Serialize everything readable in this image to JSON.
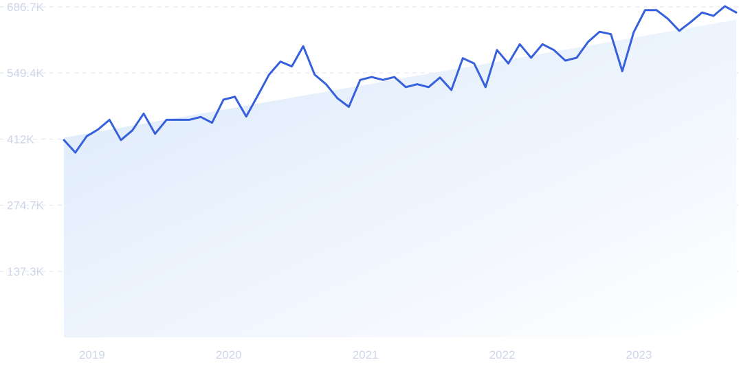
{
  "chart_data": {
    "type": "area",
    "title": "",
    "xlabel": "",
    "ylabel": "",
    "ylim": [
      0,
      686700
    ],
    "y_ticks": [
      {
        "value": 137300,
        "label": "137.3K"
      },
      {
        "value": 274700,
        "label": "274.7K"
      },
      {
        "value": 412000,
        "label": "412K"
      },
      {
        "value": 549400,
        "label": "549.4K"
      },
      {
        "value": 686700,
        "label": "686.7K"
      }
    ],
    "x_ticks": [
      {
        "value": "2019",
        "label": "2019"
      },
      {
        "value": "2020",
        "label": "2020"
      },
      {
        "value": "2021",
        "label": "2021"
      },
      {
        "value": "2022",
        "label": "2022"
      },
      {
        "value": "2023",
        "label": "2023"
      }
    ],
    "grid": true,
    "colors": {
      "line": "#3660dc",
      "area_top": "#dbe9fb",
      "area_bottom": "#ffffff",
      "grid": "#dde3f0",
      "tick_label": "#cfd6ea"
    },
    "series": [
      {
        "name": "",
        "x": [
          "2018-11",
          "2018-12",
          "2019-01",
          "2019-02",
          "2019-03",
          "2019-04",
          "2019-05",
          "2019-06",
          "2019-07",
          "2019-08",
          "2019-09",
          "2019-10",
          "2019-11",
          "2019-12",
          "2020-01",
          "2020-02",
          "2020-03",
          "2020-04",
          "2020-05",
          "2020-06",
          "2020-07",
          "2020-08",
          "2020-09",
          "2020-10",
          "2020-11",
          "2020-12",
          "2021-01",
          "2021-02",
          "2021-03",
          "2021-04",
          "2021-05",
          "2021-06",
          "2021-07",
          "2021-08",
          "2021-09",
          "2021-10",
          "2021-11",
          "2021-12",
          "2022-01",
          "2022-02",
          "2022-03",
          "2022-04",
          "2022-05",
          "2022-06",
          "2022-07",
          "2022-08",
          "2022-09",
          "2022-10",
          "2022-11",
          "2022-12",
          "2023-01",
          "2023-02",
          "2023-03",
          "2023-04",
          "2023-05",
          "2023-06",
          "2023-07",
          "2023-08",
          "2023-09",
          "2023-10"
        ],
        "values": [
          410000,
          384000,
          418000,
          432000,
          452000,
          410000,
          430000,
          465000,
          423000,
          452000,
          452000,
          452000,
          458000,
          446000,
          494000,
          500000,
          459000,
          502000,
          546000,
          573000,
          563000,
          605000,
          546000,
          526000,
          497000,
          479000,
          535000,
          541000,
          535000,
          541000,
          520000,
          526000,
          520000,
          540000,
          514000,
          580000,
          569000,
          520000,
          597000,
          569000,
          609000,
          581000,
          609000,
          597000,
          575000,
          581000,
          614000,
          635000,
          630000,
          553000,
          634000,
          680000,
          680000,
          662000,
          637000,
          655000,
          675000,
          668000,
          688000,
          675000
        ]
      }
    ],
    "trend": {
      "start": 415000,
      "end": 660000
    }
  }
}
